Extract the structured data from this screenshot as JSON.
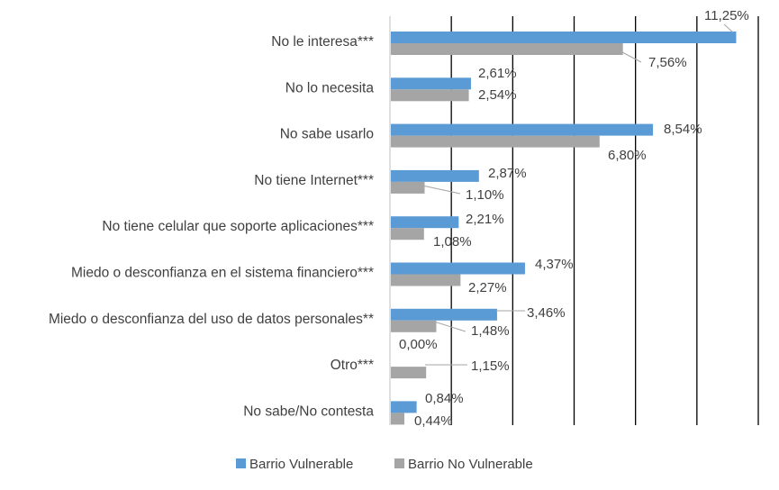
{
  "chart_data": {
    "type": "bar",
    "orientation": "horizontal",
    "categories": [
      "No le interesa***",
      "No lo necesita",
      "No sabe usarlo",
      "No tiene Internet***",
      "No tiene celular que soporte aplicaciones***",
      "Miedo o desconfianza en el sistema financiero***",
      "Miedo o desconfianza del uso de datos personales**",
      "Otro***",
      "No sabe/No contesta"
    ],
    "series": [
      {
        "name": "Barrio Vulnerable",
        "color": "#5B9BD5",
        "values": [
          11.25,
          2.61,
          8.54,
          2.87,
          2.21,
          4.37,
          3.46,
          0.0,
          0.84
        ],
        "labels": [
          "11,25%",
          "2,61%",
          "8,54%",
          "2,87%",
          "2,21%",
          "4,37%",
          "3,46%",
          "0,00%",
          "0,84%"
        ]
      },
      {
        "name": "Barrio No Vulnerable",
        "color": "#A5A5A5",
        "values": [
          7.56,
          2.54,
          6.8,
          1.1,
          1.08,
          2.27,
          1.48,
          1.15,
          0.44
        ],
        "labels": [
          "7,56%",
          "2,54%",
          "6,80%",
          "1,10%",
          "1,08%",
          "2,27%",
          "1,48%",
          "1,15%",
          "0,44%"
        ]
      }
    ],
    "xlim": [
      0,
      12
    ],
    "gridlines": true,
    "legend_position": "bottom",
    "title": "",
    "xlabel": "",
    "ylabel": ""
  }
}
